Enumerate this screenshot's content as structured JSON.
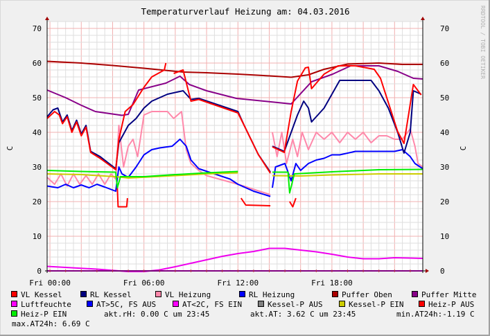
{
  "chart_data": {
    "type": "line",
    "title": "Temperaturverlauf Heizung am: 04.03.2016",
    "ylabel": "C",
    "ylabel_right": "C",
    "watermark": "RRDTOOL / TOBI OETIKER",
    "ylim": [
      0,
      70
    ],
    "yticks": [
      0,
      10,
      20,
      30,
      40,
      50,
      60,
      70
    ],
    "xlim_hours": [
      -0.18,
      23.8
    ],
    "xticks": [
      {
        "h": 0,
        "label": "Fri 00:00"
      },
      {
        "h": 6,
        "label": "Fri 06:00"
      },
      {
        "h": 12,
        "label": "Fri 12:00"
      },
      {
        "h": 18,
        "label": "Fri 18:00"
      }
    ],
    "grid": true,
    "legend_placement": "bottom",
    "series": [
      {
        "name": "Puffer Oben",
        "color": "#aa0000",
        "points": [
          [
            -0.18,
            60.5
          ],
          [
            2,
            60
          ],
          [
            4,
            59.3
          ],
          [
            6,
            58.5
          ],
          [
            8.5,
            57.4
          ],
          [
            10,
            57.2
          ],
          [
            12,
            56.8
          ],
          [
            14,
            56.3
          ],
          [
            15.4,
            55.9
          ],
          [
            16.5,
            56.6
          ],
          [
            17.5,
            58.2
          ],
          [
            19,
            59.7
          ],
          [
            21,
            60
          ],
          [
            22.5,
            59.6
          ],
          [
            23.8,
            59.6
          ]
        ]
      },
      {
        "name": "Puffer Mitte",
        "color": "#880088",
        "points": [
          [
            -0.18,
            52.2
          ],
          [
            1,
            50
          ],
          [
            2,
            47.8
          ],
          [
            2.9,
            46
          ],
          [
            4.6,
            44.9
          ],
          [
            5,
            45.2
          ],
          [
            5.66,
            52.2
          ],
          [
            7.4,
            54.2
          ],
          [
            8.3,
            56.2
          ],
          [
            8.9,
            53.8
          ],
          [
            10,
            52
          ],
          [
            11.9,
            49.8
          ],
          [
            14.1,
            48.8
          ],
          [
            15.4,
            48.2
          ],
          [
            16.7,
            54.6
          ],
          [
            18.05,
            56.8
          ],
          [
            19.2,
            59.2
          ],
          [
            21,
            59.2
          ],
          [
            22.2,
            57.6
          ],
          [
            23.2,
            55.6
          ],
          [
            23.8,
            55.4
          ]
        ]
      },
      {
        "name": "VL Heizung",
        "color": "#ff88aa",
        "points": [
          [
            -0.18,
            27
          ],
          [
            0.3,
            25
          ],
          [
            0.7,
            28
          ],
          [
            1.1,
            24.5
          ],
          [
            1.5,
            28
          ],
          [
            1.9,
            25
          ],
          [
            2.3,
            27.5
          ],
          [
            2.7,
            25
          ],
          [
            3.1,
            28
          ],
          [
            3.5,
            25
          ],
          [
            3.9,
            28
          ],
          [
            4.2,
            26.5
          ],
          [
            4.4,
            42
          ],
          [
            4.7,
            30
          ],
          [
            5,
            36
          ],
          [
            5.3,
            38
          ],
          [
            5.6,
            33
          ],
          [
            6,
            45
          ],
          [
            6.5,
            46
          ],
          [
            7.5,
            46
          ],
          [
            7.9,
            44
          ],
          [
            8.4,
            46
          ],
          [
            8.7,
            35
          ],
          [
            9,
            31
          ],
          [
            9.5,
            29
          ],
          [
            10,
            27.5
          ],
          [
            12,
            25
          ],
          [
            14.07,
            22
          ],
          null,
          [
            14.2,
            40
          ],
          [
            14.5,
            33
          ],
          [
            14.8,
            40
          ],
          [
            15.1,
            31
          ],
          [
            15.5,
            38
          ],
          [
            15.8,
            33
          ],
          [
            16.1,
            40
          ],
          [
            16.5,
            35
          ],
          [
            17,
            40
          ],
          [
            17.5,
            38
          ],
          [
            18,
            40
          ],
          [
            18.5,
            37
          ],
          [
            19,
            40
          ],
          [
            19.5,
            38
          ],
          [
            20,
            40
          ],
          [
            20.5,
            37
          ],
          [
            21,
            39
          ],
          [
            21.5,
            39
          ],
          [
            22,
            38
          ],
          [
            22.5,
            38
          ],
          [
            23,
            41
          ],
          [
            23.3,
            36
          ],
          [
            23.5,
            31
          ],
          [
            23.8,
            30
          ]
        ]
      },
      {
        "name": "RL Heizung",
        "color": "#0000ff",
        "points": [
          [
            -0.18,
            24.5
          ],
          [
            0.5,
            24
          ],
          [
            1,
            25
          ],
          [
            1.5,
            24
          ],
          [
            2,
            24.8
          ],
          [
            2.5,
            24
          ],
          [
            3,
            25
          ],
          [
            3.5,
            24.2
          ],
          [
            4.2,
            23
          ],
          [
            4.4,
            30
          ],
          [
            4.6,
            28
          ],
          [
            5,
            27
          ],
          [
            5.5,
            30
          ],
          [
            6,
            33.5
          ],
          [
            6.5,
            35
          ],
          [
            7,
            35.5
          ],
          [
            7.8,
            36
          ],
          [
            8.3,
            38
          ],
          [
            8.7,
            36
          ],
          [
            9,
            32
          ],
          [
            9.5,
            29.5
          ],
          [
            10.5,
            28
          ],
          [
            11.5,
            26.5
          ],
          [
            12,
            25
          ],
          [
            13,
            23
          ],
          [
            14.07,
            21.5
          ],
          null,
          [
            14.2,
            24
          ],
          [
            14.4,
            30
          ],
          [
            15,
            31
          ],
          [
            15.4,
            26
          ],
          [
            15.7,
            31
          ],
          [
            16,
            29
          ],
          [
            16.5,
            31
          ],
          [
            17,
            32
          ],
          [
            17.5,
            32.5
          ],
          [
            18,
            33.5
          ],
          [
            18.5,
            33.5
          ],
          [
            19.5,
            34.5
          ],
          [
            20.5,
            34.5
          ],
          [
            21,
            34.5
          ],
          [
            22,
            34.5
          ],
          [
            22.5,
            35
          ],
          [
            23,
            33
          ],
          [
            23.3,
            31
          ],
          [
            23.8,
            29.5
          ]
        ]
      },
      {
        "name": "RL Kessel",
        "color": "#000080",
        "points": [
          [
            -0.18,
            44.5
          ],
          [
            0.2,
            46.5
          ],
          [
            0.5,
            47
          ],
          [
            0.8,
            43
          ],
          [
            1.1,
            45
          ],
          [
            1.4,
            40.5
          ],
          [
            1.7,
            43.5
          ],
          [
            2,
            39.5
          ],
          [
            2.3,
            42
          ],
          [
            2.6,
            34.5
          ],
          [
            3.2,
            33
          ],
          [
            4.2,
            29.5
          ],
          [
            4.4,
            37
          ],
          [
            5,
            42
          ],
          [
            5.5,
            44
          ],
          [
            6,
            47
          ],
          [
            6.5,
            49
          ],
          [
            7.5,
            51
          ],
          [
            8.5,
            52
          ],
          [
            9,
            49.5
          ],
          [
            9.5,
            49.8
          ],
          [
            12,
            46
          ],
          [
            12.4,
            42
          ],
          [
            13.3,
            33.6
          ],
          [
            14.07,
            28.5
          ],
          null,
          [
            14.2,
            36
          ],
          [
            14.96,
            34.5
          ],
          [
            15.4,
            40
          ],
          [
            15.8,
            45
          ],
          [
            16.2,
            49
          ],
          [
            16.5,
            47
          ],
          [
            16.7,
            43
          ],
          [
            17.5,
            47
          ],
          [
            18,
            51
          ],
          [
            18.5,
            55
          ],
          [
            19.5,
            55
          ],
          [
            20.5,
            55
          ],
          [
            21,
            52
          ],
          [
            21.6,
            47
          ],
          [
            22.2,
            40
          ],
          [
            22.6,
            34
          ],
          [
            23,
            40
          ],
          [
            23.2,
            52
          ],
          [
            23.7,
            51
          ]
        ]
      },
      {
        "name": "VL Kessel",
        "color": "#ff0000",
        "points": [
          [
            -0.18,
            44
          ],
          [
            0.3,
            46
          ],
          [
            0.6,
            45
          ],
          [
            0.8,
            42.5
          ],
          [
            1.1,
            44.5
          ],
          [
            1.4,
            40
          ],
          [
            1.7,
            43
          ],
          [
            2,
            39
          ],
          [
            2.3,
            41.5
          ],
          [
            2.6,
            34.2
          ],
          [
            3.2,
            32.5
          ],
          [
            4.2,
            29.2
          ],
          [
            4.4,
            38
          ],
          [
            4.8,
            46
          ],
          [
            5.3,
            48
          ],
          [
            6,
            53
          ],
          [
            6.5,
            56
          ],
          [
            7.3,
            58
          ],
          [
            7.4,
            60
          ],
          null,
          [
            7.9,
            57
          ],
          [
            8.5,
            58
          ],
          [
            9,
            49
          ],
          [
            9.5,
            49.5
          ],
          [
            12,
            45.6
          ],
          [
            12.4,
            42
          ],
          [
            13.3,
            33.6
          ],
          [
            14.07,
            28.2
          ],
          null,
          [
            14.2,
            35.8
          ],
          [
            14.96,
            34.2
          ],
          [
            15.4,
            46
          ],
          [
            15.8,
            54.8
          ],
          [
            16.3,
            58.6
          ],
          [
            16.5,
            58.8
          ],
          [
            16.7,
            52.6
          ],
          [
            17.5,
            56.8
          ],
          [
            18.4,
            59.2
          ],
          [
            19.5,
            59.2
          ],
          [
            20.7,
            58.2
          ],
          [
            21.1,
            55.6
          ],
          [
            21.6,
            48.6
          ],
          [
            22.2,
            40.2
          ],
          [
            22.6,
            36.8
          ],
          [
            23.2,
            53.8
          ],
          [
            23.7,
            50.8
          ]
        ]
      },
      {
        "name": "Heiz-P AUS",
        "color": "#ff0000",
        "points": [
          [
            4.3,
            24
          ],
          [
            4.35,
            18.5
          ],
          [
            4.9,
            18.5
          ],
          [
            4.95,
            21
          ],
          null,
          [
            12.2,
            21
          ],
          [
            12.5,
            19
          ],
          [
            14.07,
            18.8
          ],
          null,
          [
            15.3,
            20
          ],
          [
            15.5,
            18.5
          ],
          [
            15.7,
            21
          ]
        ]
      },
      {
        "name": "Kessel-P EIN",
        "color": "#cccc00",
        "points": [
          [
            -0.18,
            28
          ],
          [
            2,
            27.8
          ],
          [
            4.2,
            27.2
          ],
          [
            5,
            26.8
          ],
          [
            8,
            27.5
          ],
          [
            10,
            28
          ],
          [
            12,
            28.3
          ],
          null,
          [
            14.2,
            27.5
          ],
          [
            16,
            27.4
          ],
          [
            18,
            27.7
          ],
          [
            21,
            28
          ],
          [
            23.8,
            28
          ]
        ]
      },
      {
        "name": "Heiz-P EIN",
        "color": "#00ee00",
        "points": [
          [
            -0.18,
            29
          ],
          [
            2,
            28.7
          ],
          [
            4.2,
            28.5
          ],
          [
            4.3,
            24
          ],
          [
            4.5,
            27.2
          ],
          [
            6,
            27.2
          ],
          [
            8,
            27.8
          ],
          [
            10,
            28.3
          ],
          [
            12,
            28.7
          ],
          null,
          [
            14.2,
            28.5
          ],
          [
            15.2,
            28.5
          ],
          [
            15.3,
            22.5
          ],
          [
            15.6,
            28
          ],
          [
            18,
            28.6
          ],
          [
            21,
            29.2
          ],
          [
            23.8,
            29.3
          ]
        ]
      },
      {
        "name": "AT<2C, FS EIN",
        "color": "#ff00ff",
        "points": [
          [
            -0.18,
            0
          ],
          [
            23.8,
            0
          ]
        ]
      },
      {
        "name": "Luftfeuchte",
        "color": "#ee00ee",
        "points": [
          [
            -0.18,
            1.3
          ],
          [
            1,
            1
          ],
          [
            3,
            0.5
          ],
          [
            5,
            -0.2
          ],
          [
            6,
            -0.2
          ],
          [
            7,
            0.3
          ],
          [
            8,
            1.2
          ],
          [
            9,
            2.2
          ],
          [
            10,
            3.2
          ],
          [
            11,
            4.2
          ],
          [
            12,
            5
          ],
          [
            13,
            5.6
          ],
          [
            14,
            6.5
          ],
          [
            15,
            6.5
          ],
          [
            16,
            6
          ],
          [
            17,
            5.5
          ],
          [
            18,
            4.8
          ],
          [
            19,
            4
          ],
          [
            20,
            3.5
          ],
          [
            21,
            3.5
          ],
          [
            22,
            3.8
          ],
          [
            23,
            3.7
          ],
          [
            23.8,
            3.6
          ]
        ]
      }
    ]
  },
  "legend": [
    {
      "label": "VL Kessel",
      "color": "#ff0000"
    },
    {
      "label": "RL Kessel",
      "color": "#000080"
    },
    {
      "label": "VL Heizung",
      "color": "#ff88aa"
    },
    {
      "label": "RL Heizung",
      "color": "#0000ff"
    },
    {
      "label": "Puffer Oben",
      "color": "#aa0000"
    },
    {
      "label": "Puffer Mitte",
      "color": "#880088"
    },
    {
      "label": "Luftfeuchte",
      "color": "#ff00ff"
    },
    {
      "label": "AT>5C, FS AUS",
      "color": "#0000ff"
    },
    {
      "label": "AT<2C, FS EIN",
      "color": "#ff00ff"
    },
    {
      "label": "Kessel-P AUS",
      "color": "#808080"
    },
    {
      "label": "Kessel-P EIN",
      "color": "#cccc00"
    },
    {
      "label": "Heiz-P AUS",
      "color": "#ff0000"
    },
    {
      "label": "Heiz-P EIN",
      "color": "#00ee00"
    }
  ],
  "stats": {
    "akt_rh": "akt.rH: 0.00 C um 23:45",
    "akt_at": "akt.AT: 3.62 C um 23:45",
    "min_at": "min.AT24h:-1.19 C",
    "max_at": "max.AT24h: 6.69 C"
  }
}
